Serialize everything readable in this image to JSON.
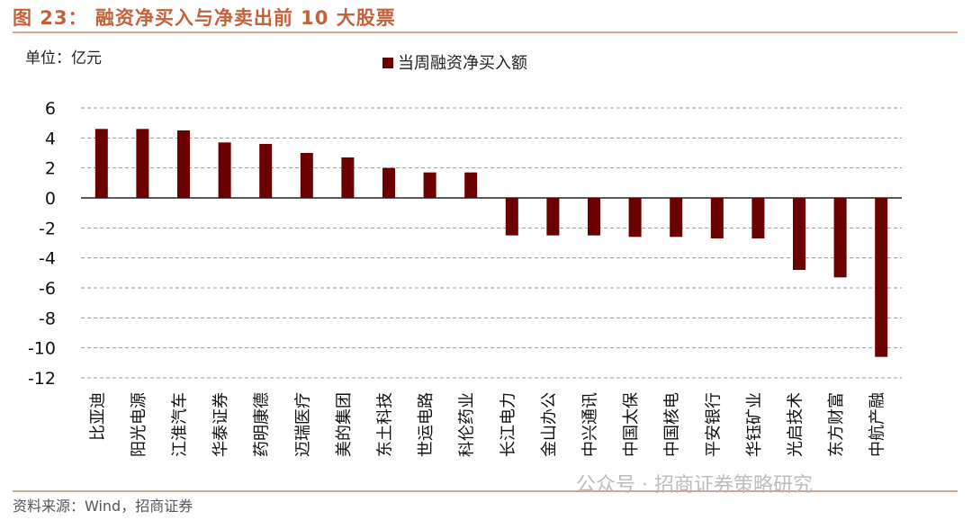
{
  "header": {
    "title": "图 23： 融资净买入与净卖出前 10 大股票"
  },
  "unit_label": "单位：亿元",
  "footer": {
    "source": "资料来源：Wind，招商证券"
  },
  "watermark": "公众号 · 招商证券策略研究",
  "colors": {
    "bar": "#6b0000",
    "title": "#c2623b",
    "rule": "#d9a38d",
    "grid": "#9a9a9a"
  },
  "chart_data": {
    "type": "bar",
    "categories": [
      "比亚迪",
      "阳光电源",
      "江淮汽车",
      "华泰证券",
      "药明康德",
      "迈瑞医疗",
      "美的集团",
      "东土科技",
      "世运电路",
      "科伦药业",
      "长江电力",
      "金山办公",
      "中兴通讯",
      "中国太保",
      "中国核电",
      "平安银行",
      "华钰矿业",
      "光启技术",
      "东方财富",
      "中航产融"
    ],
    "series": [
      {
        "name": "当周融资净买入额",
        "values": [
          4.6,
          4.6,
          4.5,
          3.7,
          3.6,
          3.0,
          2.7,
          2.0,
          1.7,
          1.7,
          -2.5,
          -2.5,
          -2.5,
          -2.6,
          -2.6,
          -2.7,
          -2.7,
          -4.8,
          -5.3,
          -10.6
        ]
      }
    ],
    "yticks": [
      "6",
      "4",
      "2",
      "0",
      "-2",
      "-4",
      "-6",
      "-8",
      "-10",
      "-12"
    ],
    "ylim": [
      -12,
      6
    ],
    "xlabel": "",
    "ylabel": "",
    "grid": true,
    "legend_position": "top-center"
  }
}
